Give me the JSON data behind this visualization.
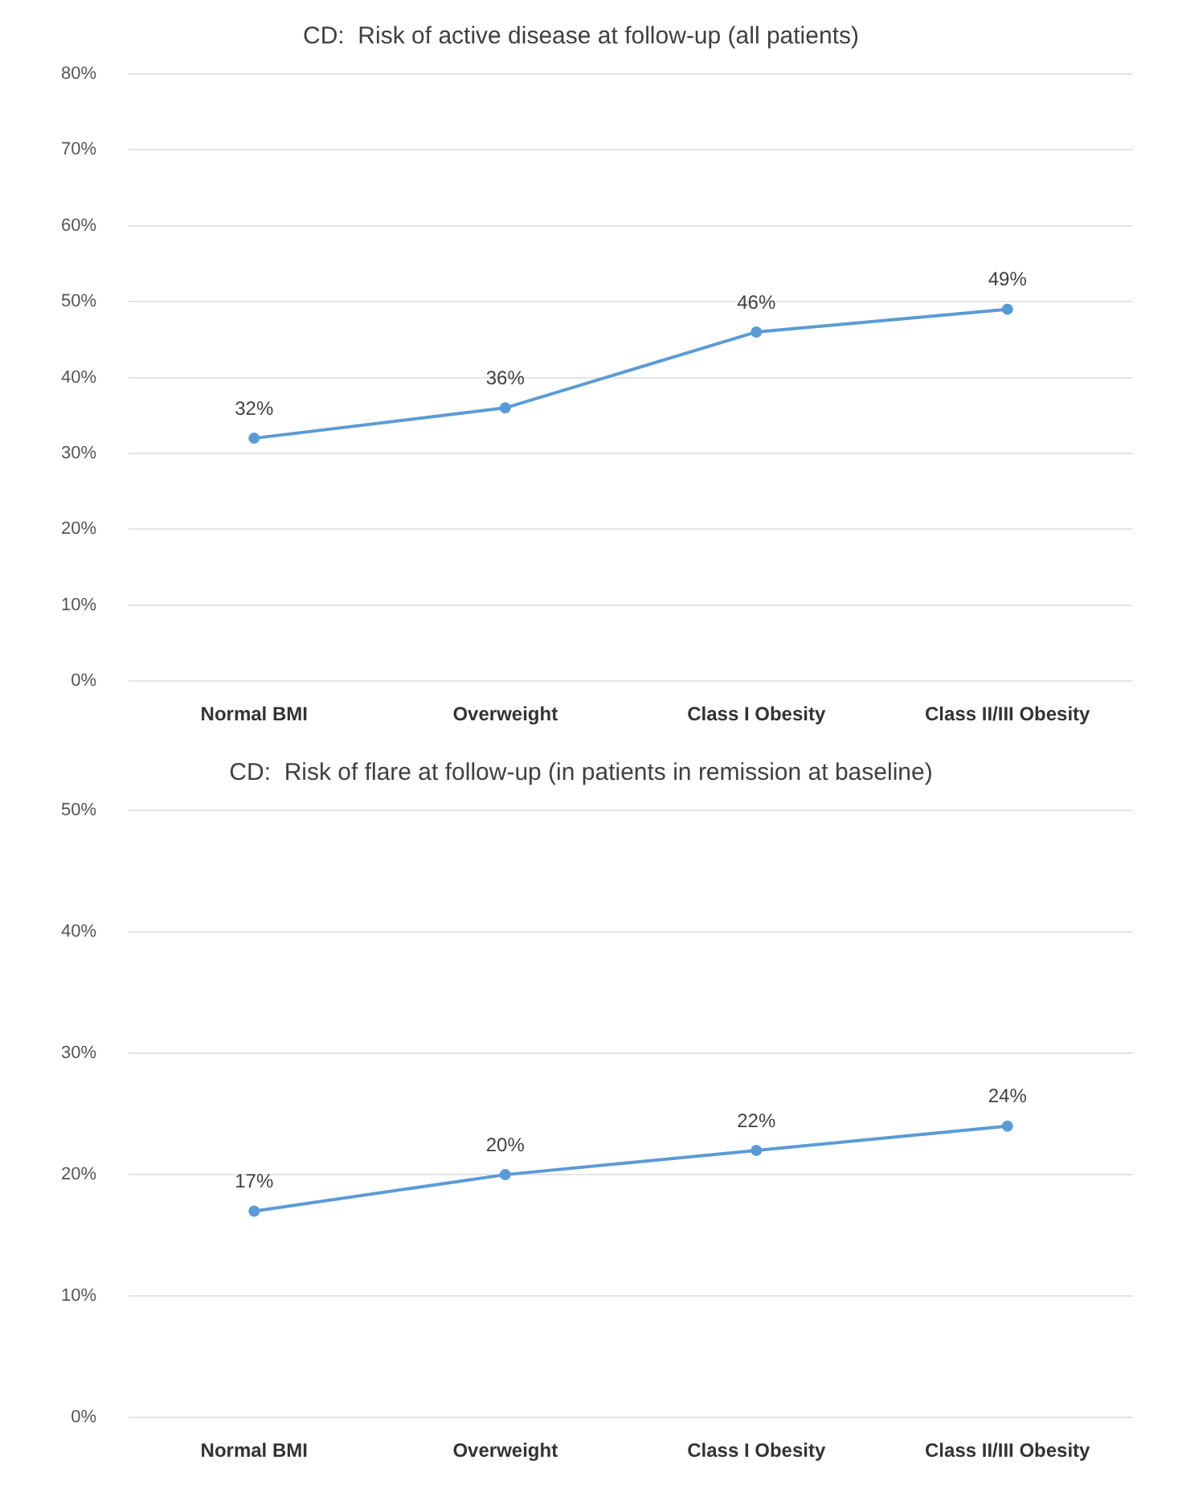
{
  "chart_data": [
    {
      "type": "line",
      "title": "CD:  Risk of active disease at follow-up (all patients)",
      "categories": [
        "Normal BMI",
        "Overweight",
        "Class I Obesity",
        "Class II/III Obesity"
      ],
      "values": [
        32,
        36,
        46,
        49
      ],
      "color": "#5b9bd5",
      "ylim": [
        0,
        80
      ],
      "yticks": [
        {
          "value": 0,
          "label": "0%"
        },
        {
          "value": 10,
          "label": "10%"
        },
        {
          "value": 20,
          "label": "20%"
        },
        {
          "value": 30,
          "label": "30%"
        },
        {
          "value": 40,
          "label": "40%"
        },
        {
          "value": 50,
          "label": "50%"
        },
        {
          "value": 60,
          "label": "60%"
        },
        {
          "value": 70,
          "label": "70%"
        },
        {
          "value": 80,
          "label": "80%"
        }
      ],
      "value_labels": [
        "32%",
        "36%",
        "46%",
        "49%"
      ],
      "grid": "y",
      "marker": "circle",
      "line_style": "solid",
      "legend": false
    },
    {
      "type": "line",
      "title": "CD:  Risk of flare at follow-up (in patients in remission at baseline)",
      "categories": [
        "Normal BMI",
        "Overweight",
        "Class I Obesity",
        "Class II/III Obesity"
      ],
      "values": [
        17,
        20,
        22,
        24
      ],
      "color": "#5b9bd5",
      "ylim": [
        0,
        50
      ],
      "yticks": [
        {
          "value": 0,
          "label": "0%"
        },
        {
          "value": 10,
          "label": "10%"
        },
        {
          "value": 20,
          "label": "20%"
        },
        {
          "value": 30,
          "label": "30%"
        },
        {
          "value": 40,
          "label": "40%"
        },
        {
          "value": 50,
          "label": "50%"
        }
      ],
      "value_labels": [
        "17%",
        "20%",
        "22%",
        "24%"
      ],
      "grid": "y",
      "marker": "circle",
      "line_style": "solid",
      "legend": false
    }
  ]
}
